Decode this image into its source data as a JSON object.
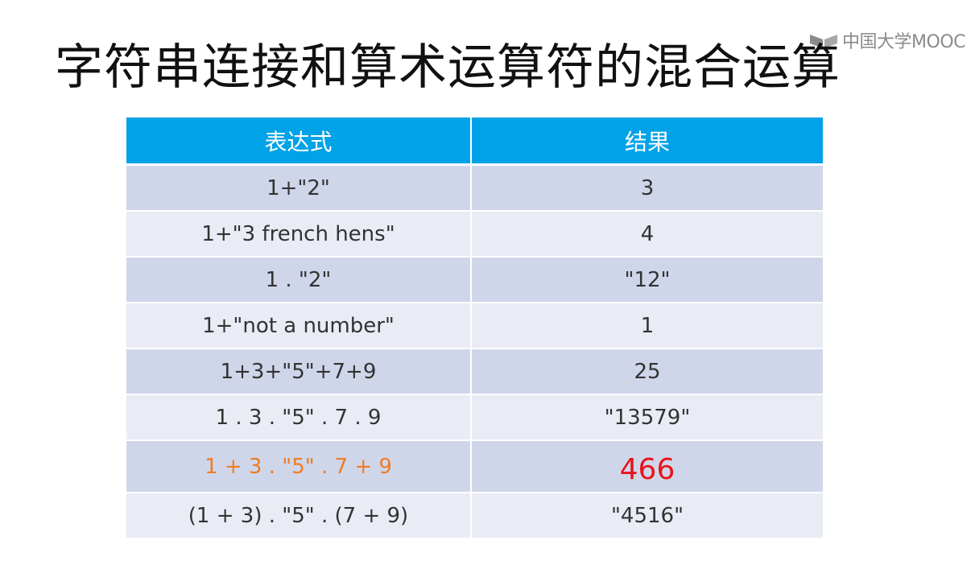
{
  "watermark": {
    "text": "中国大学MOOC"
  },
  "title": "字符串连接和算术运算符的混合运算",
  "table": {
    "headers": [
      "表达式",
      "结果"
    ],
    "rows": [
      {
        "expression": "1+\"2\"",
        "result": "3"
      },
      {
        "expression": "1+\"3 french hens\"",
        "result": "4"
      },
      {
        "expression": "1 . \"2\"",
        "result": "\"12\""
      },
      {
        "expression": "1+\"not a number\"",
        "result": "1"
      },
      {
        "expression": "1+3+\"5\"+7+9",
        "result": "25"
      },
      {
        "expression": "1 . 3 . \"5\" . 7 . 9",
        "result": "\"13579\""
      },
      {
        "expression": "1 + 3 . \"5\" . 7 + 9",
        "result": "466"
      },
      {
        "expression": "(1 + 3) . \"5\" . (7 + 9)",
        "result": "\"4516\""
      }
    ]
  },
  "colors": {
    "header_bg": "#00a2e8",
    "row_dark": "#d0d6ea",
    "row_light": "#e9ebf5",
    "highlight_expression": "#f07c22",
    "highlight_result": "#e8141a"
  }
}
